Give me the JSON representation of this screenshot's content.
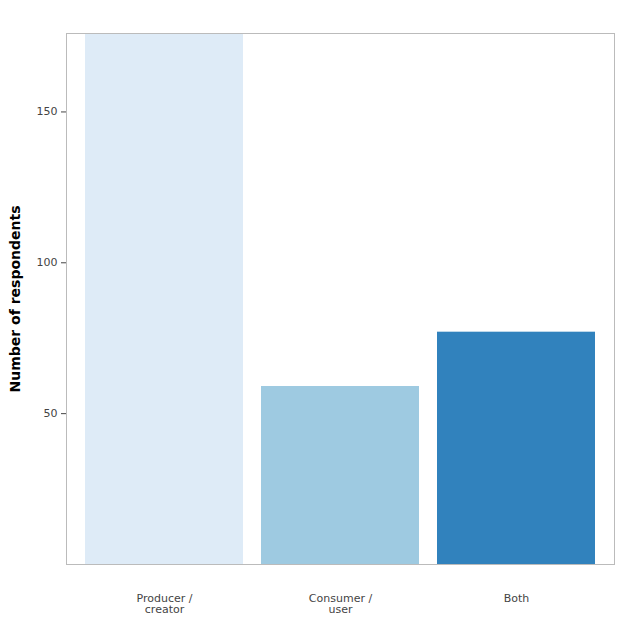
{
  "chart_data": {
    "type": "bar",
    "y_label": "Number of respondents",
    "categories": [
      "Producer /\ncreator",
      "Consumer /\nuser",
      "Both"
    ],
    "values": [
      176,
      59,
      77
    ],
    "colors": [
      "#deebf7",
      "#9ecae1",
      "#3182bd"
    ],
    "ylim": [
      0,
      176
    ],
    "yticks": [
      50,
      100,
      150
    ],
    "grid": false
  }
}
